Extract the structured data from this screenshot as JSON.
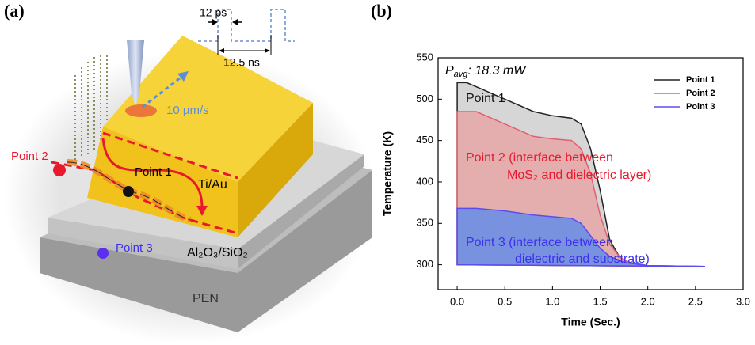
{
  "panel_a": {
    "label": "(a)",
    "pulse_width": "12 ps",
    "pulse_period": "12.5 ns",
    "scan_speed": "10 µm/s",
    "point_2": "Point 2",
    "point_1": "Point 1",
    "electrode": "Ti/Au",
    "dielectric": "Al₂O₃/SiO₂",
    "point_3": "Point 3",
    "substrate": "PEN"
  },
  "chart_data": {
    "type": "area",
    "panel_label": "(b)",
    "annotation": {
      "symbol": "P",
      "subscript": "avg",
      "text": ": 18.3 mW"
    },
    "x_label": "Time (Sec.)",
    "y_label": "Temperature (K)",
    "xlim": [
      -0.2,
      3.0
    ],
    "xticks": [
      {
        "value": 0,
        "label": "0.0"
      },
      0.5,
      {
        "value": 1,
        "label": "1.0"
      },
      1.5,
      {
        "value": 2,
        "label": "2.0"
      },
      2.5,
      {
        "value": 3,
        "label": "3.0"
      }
    ],
    "ylim": [
      270,
      550
    ],
    "yticks": [
      300,
      350,
      400,
      450,
      500,
      550
    ],
    "legend": "upper right",
    "x": [
      0,
      0,
      0.1,
      0.2,
      0.5,
      0.8,
      1.0,
      1.2,
      1.3,
      1.4,
      1.5,
      1.6,
      1.7,
      1.8,
      2.0,
      2.6
    ],
    "series": [
      {
        "name": "Point 1",
        "color": "#222222",
        "fill": "#c8c8c8",
        "label_color": "#111111",
        "label_lines": [
          "Point 1"
        ],
        "values": [
          300,
          520,
          520,
          515,
          500,
          485,
          480,
          477,
          470,
          440,
          390,
          330,
          310,
          303,
          299,
          298
        ]
      },
      {
        "name": "Point 2",
        "color": "#e06070",
        "fill": "#e8a0a0",
        "label_color": "#e8192c",
        "label_lines": [
          "Point 2 (interface between",
          "MoS₂ and dielectric layer)"
        ],
        "values": [
          300,
          485,
          485,
          485,
          470,
          455,
          452,
          450,
          440,
          410,
          360,
          325,
          310,
          303,
          299,
          298
        ]
      },
      {
        "name": "Point 3",
        "color": "#5b4cf0",
        "fill": "#6d8fe6",
        "label_color": "#3b2ff0",
        "label_lines": [
          "Point 3 (interface between",
          "dielectric and substrate)"
        ],
        "values": [
          300,
          368,
          368,
          368,
          365,
          360,
          358,
          356,
          350,
          335,
          320,
          310,
          305,
          302,
          299,
          298
        ]
      }
    ]
  }
}
